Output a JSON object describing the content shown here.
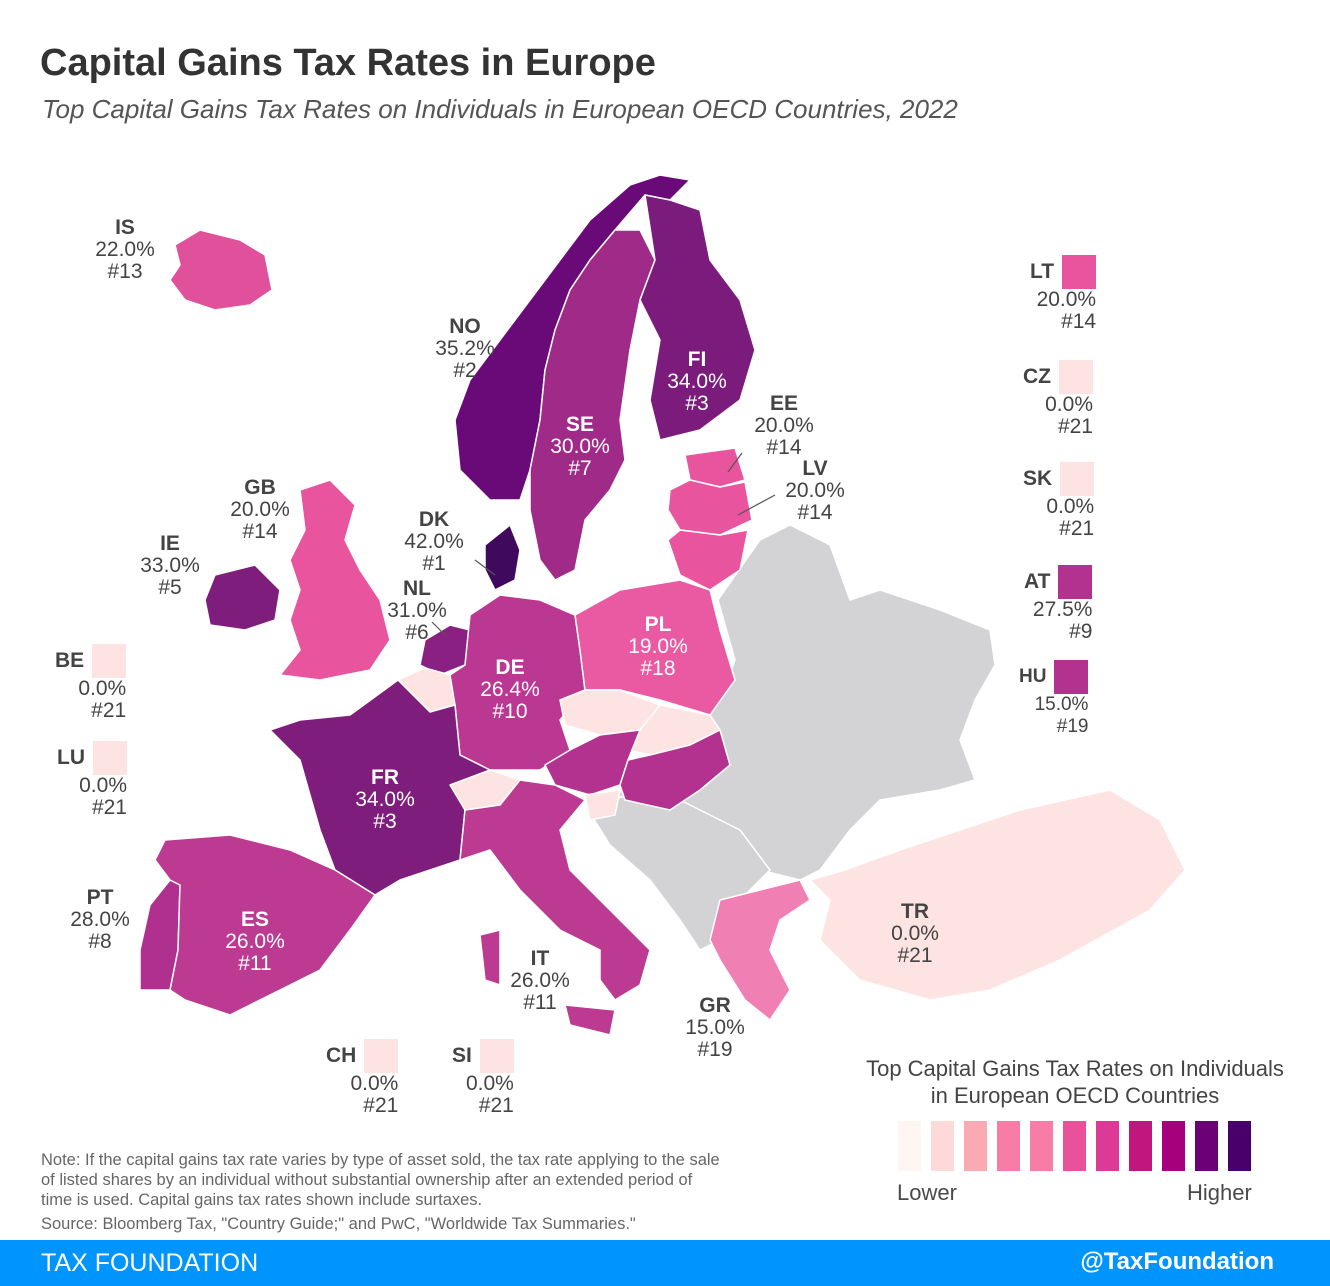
{
  "header": {
    "title": "Capital Gains Tax Rates in Europe",
    "subtitle": "Top Capital Gains Tax Rates on Individuals in European OECD Countries, 2022"
  },
  "colors": {
    "non_oecd": "#d3d3d6",
    "zero": "#fde3e1",
    "accent_footer": "#0094ff"
  },
  "countries": {
    "IS": {
      "code": "IS",
      "rate": "22.0%",
      "rank": "#13",
      "color": "#e0509b"
    },
    "NO": {
      "code": "NO",
      "rate": "35.2%",
      "rank": "#2",
      "color": "#6a0a78"
    },
    "FI": {
      "code": "FI",
      "rate": "34.0%",
      "rank": "#3",
      "color": "#7b1b7c"
    },
    "SE": {
      "code": "SE",
      "rate": "30.0%",
      "rank": "#7",
      "color": "#a02a88"
    },
    "EE": {
      "code": "EE",
      "rate": "20.0%",
      "rank": "#14",
      "color": "#e8559e"
    },
    "LV": {
      "code": "LV",
      "rate": "20.0%",
      "rank": "#14",
      "color": "#e8559e"
    },
    "LT": {
      "code": "LT",
      "rate": "20.0%",
      "rank": "#14",
      "color": "#e8559e"
    },
    "GB": {
      "code": "GB",
      "rate": "20.0%",
      "rank": "#14",
      "color": "#e8559e"
    },
    "IE": {
      "code": "IE",
      "rate": "33.0%",
      "rank": "#5",
      "color": "#7e1d7c"
    },
    "DK": {
      "code": "DK",
      "rate": "42.0%",
      "rank": "#1",
      "color": "#3f0a5e"
    },
    "NL": {
      "code": "NL",
      "rate": "31.0%",
      "rank": "#6",
      "color": "#8a2182"
    },
    "DE": {
      "code": "DE",
      "rate": "26.4%",
      "rank": "#10",
      "color": "#bb3892"
    },
    "PL": {
      "code": "PL",
      "rate": "19.0%",
      "rank": "#18",
      "color": "#ea5aa2"
    },
    "BE": {
      "code": "BE",
      "rate": "0.0%",
      "rank": "#21",
      "color": "#fde3e1"
    },
    "LU": {
      "code": "LU",
      "rate": "0.0%",
      "rank": "#21",
      "color": "#fde3e1"
    },
    "CZ": {
      "code": "CZ",
      "rate": "0.0%",
      "rank": "#21",
      "color": "#fde3e1"
    },
    "SK": {
      "code": "SK",
      "rate": "0.0%",
      "rank": "#21",
      "color": "#fde3e1"
    },
    "AT": {
      "code": "AT",
      "rate": "27.5%",
      "rank": "#9",
      "color": "#b3318f"
    },
    "HU": {
      "code": "HU",
      "rate": "15.0%",
      "rank": "#19",
      "color": "#b3318f"
    },
    "FR": {
      "code": "FR",
      "rate": "34.0%",
      "rank": "#3",
      "color": "#7e1d7c"
    },
    "CH": {
      "code": "CH",
      "rate": "0.0%",
      "rank": "#21",
      "color": "#fde3e1"
    },
    "SI": {
      "code": "SI",
      "rate": "0.0%",
      "rank": "#21",
      "color": "#fde3e1"
    },
    "PT": {
      "code": "PT",
      "rate": "28.0%",
      "rank": "#8",
      "color": "#b0308f"
    },
    "ES": {
      "code": "ES",
      "rate": "26.0%",
      "rank": "#11",
      "color": "#bc3a91"
    },
    "IT": {
      "code": "IT",
      "rate": "26.0%",
      "rank": "#11",
      "color": "#bc3a91"
    },
    "GR": {
      "code": "GR",
      "rate": "15.0%",
      "rank": "#19",
      "color": "#f07fb3"
    },
    "TR": {
      "code": "TR",
      "rate": "0.0%",
      "rank": "#21",
      "color": "#fde3e1"
    }
  },
  "legend": {
    "title_line1": "Top Capital Gains Tax Rates on Individuals",
    "title_line2": "in European OECD Countries",
    "low_label": "Lower",
    "high_label": "Higher",
    "scale": [
      "#fff5f3",
      "#fdd9d9",
      "#fba9b3",
      "#f77ca6",
      "#f77ca6",
      "#e9529b",
      "#dd3997",
      "#c0177f",
      "#a6007c",
      "#6b0174",
      "#49006a"
    ]
  },
  "notes": {
    "note": "Note: If the capital gains tax rate varies by type of asset sold, the tax rate applying to the sale of listed shares by an individual without substantial ownership after an extended period of time is used. Capital gains tax rates shown include surtaxes.",
    "source": "Source: Bloomberg Tax, \"Country Guide;\" and PwC, \"Worldwide Tax Summaries.\""
  },
  "footer": {
    "brand": "TAX FOUNDATION",
    "handle": "@TaxFoundation"
  }
}
